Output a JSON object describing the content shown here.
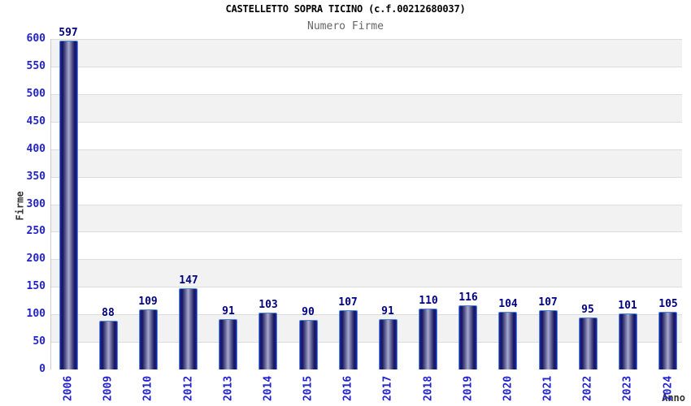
{
  "chart_data": {
    "type": "bar",
    "title": "CASTELLETTO SOPRA TICINO (c.f.00212680037)",
    "subtitle": "Numero Firme",
    "xlabel": "Anno",
    "ylabel": "Firme",
    "categories": [
      "2006",
      "2009",
      "2010",
      "2012",
      "2013",
      "2014",
      "2015",
      "2016",
      "2017",
      "2018",
      "2019",
      "2020",
      "2021",
      "2022",
      "2023",
      "2024"
    ],
    "values": [
      597,
      88,
      109,
      147,
      91,
      103,
      90,
      107,
      91,
      110,
      116,
      104,
      107,
      95,
      101,
      105
    ],
    "ylim": [
      0,
      600
    ],
    "ytick_step": 50,
    "grid": true,
    "legend": "none",
    "band_colors": [
      "#f2f2f2",
      "#ffffff"
    ],
    "colors": {
      "tick_label": "#2222cc",
      "value_label": "#000080",
      "title": "#000000",
      "subtitle": "#666666",
      "axis_title": "#333333",
      "gridline": "#dcdcdc",
      "bar_border": "#4a86d9",
      "bar_dark": "#16165c",
      "bar_light": "#a9a9ce",
      "bar_edge": "#2323a8"
    }
  }
}
